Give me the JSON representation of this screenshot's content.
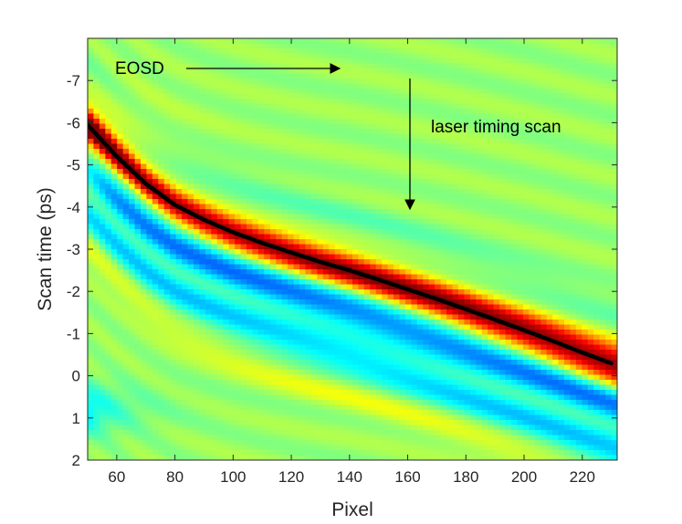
{
  "chart_data": {
    "type": "heatmap",
    "title": "",
    "xlabel": "Pixel",
    "ylabel": "Scan time (ps)",
    "xlim": [
      50,
      232
    ],
    "ylim": [
      -8,
      2
    ],
    "y_reversed": true,
    "x_ticks": [
      60,
      80,
      100,
      120,
      140,
      160,
      180,
      200,
      220
    ],
    "x_tick_labels": [
      "60",
      "80",
      "100",
      "120",
      "140",
      "160",
      "180",
      "200",
      "220"
    ],
    "y_ticks": [
      -7,
      -6,
      -5,
      -4,
      -3,
      -2,
      -1,
      0,
      1,
      2
    ],
    "y_tick_labels": [
      "-7",
      "-6",
      "-5",
      "-4",
      "-3",
      "-2",
      "-1",
      "0",
      "1",
      "2"
    ],
    "grid": false,
    "colormap": "jet",
    "colors": {
      "background": "#17c8ec",
      "signal_peak": "#a01010",
      "signal_trough": "#1a3fd8",
      "fit_curve": "#000000"
    },
    "fit_curve": {
      "color": "#000000",
      "x": [
        50,
        60,
        70,
        80,
        90,
        100,
        110,
        120,
        130,
        140,
        150,
        160,
        170,
        180,
        190,
        200,
        210,
        220,
        231
      ],
      "y": [
        -5.95,
        -5.2,
        -4.55,
        -4.05,
        -3.7,
        -3.4,
        -3.15,
        -2.92,
        -2.7,
        -2.5,
        -2.28,
        -2.05,
        -1.82,
        -1.58,
        -1.33,
        -1.08,
        -0.82,
        -0.55,
        -0.27
      ]
    },
    "annotations": [
      {
        "text": "EOSD",
        "arrow": "right",
        "arrow_from": [
          82,
          -7.3
        ],
        "arrow_to": [
          134,
          -7.3
        ],
        "text_at": [
          66,
          -7.3
        ]
      },
      {
        "text": "laser timing scan",
        "arrow": "down",
        "arrow_from": [
          160,
          -6.9
        ],
        "arrow_to": [
          160,
          -3.8
        ],
        "text_at": [
          168,
          -5.9
        ]
      }
    ]
  }
}
